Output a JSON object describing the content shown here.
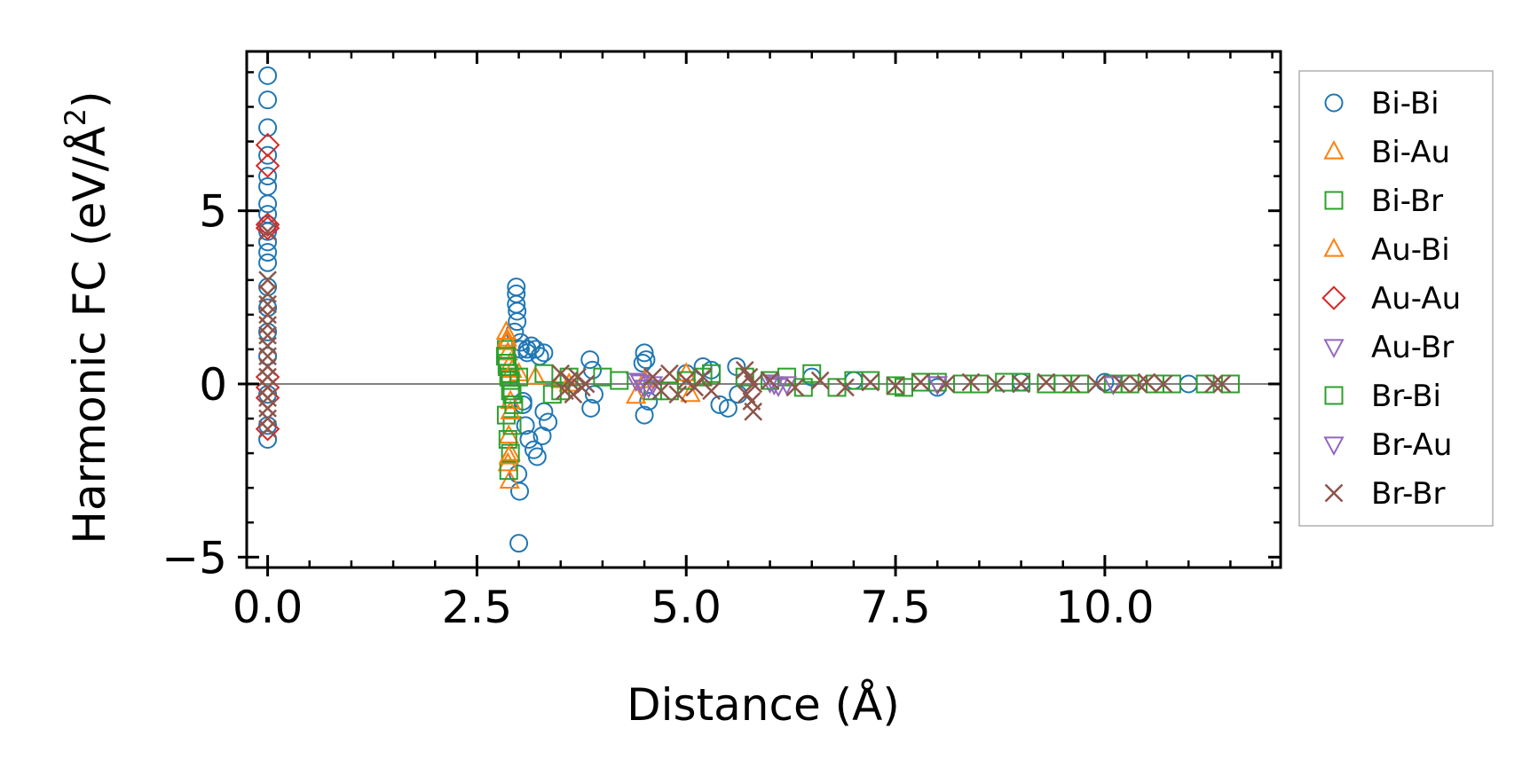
{
  "chart_data": {
    "type": "scatter",
    "title": "",
    "xlabel": "Distance (Å)",
    "ylabel": "Harmonic FC (eV/Å²)",
    "ylabel_main": "Harmonic FC (eV/Å",
    "ylabel_sup": "2",
    "ylabel_close": ")",
    "xlim": [
      -0.25,
      12.1
    ],
    "ylim": [
      -5.3,
      9.6
    ],
    "xticks": [
      0.0,
      2.5,
      5.0,
      7.5,
      10.0
    ],
    "xtick_labels": [
      "0.0",
      "2.5",
      "5.0",
      "7.5",
      "10.0"
    ],
    "yticks": [
      -5,
      0,
      5
    ],
    "ytick_labels": [
      "−5",
      "0",
      "5"
    ],
    "x_minor_step": 0.5,
    "y_minor_step": 1,
    "zero_line": true,
    "grid": false,
    "legend_position": "right-outside",
    "series": [
      {
        "name": "Bi-Bi",
        "marker": "circle",
        "color": "#1f77b4",
        "x": [
          0.0,
          0.0,
          0.0,
          0.0,
          0.0,
          0.0,
          0.0,
          0.0,
          0.0,
          0.0,
          0.0,
          0.0,
          0.0,
          0.0,
          0.0,
          0.0,
          0.0,
          0.0,
          0.0,
          0.0,
          2.97,
          2.97,
          2.97,
          2.98,
          2.98,
          2.95,
          3.02,
          3.02,
          3.1,
          3.1,
          3.15,
          3.2,
          3.25,
          3.3,
          3.05,
          3.08,
          3.12,
          3.18,
          3.22,
          3.28,
          2.99,
          3.01,
          3.0,
          3.05,
          3.3,
          3.35,
          3.85,
          3.88,
          3.9,
          3.86,
          4.5,
          4.52,
          4.48,
          4.55,
          4.5,
          5.0,
          5.2,
          5.3,
          5.4,
          5.5,
          5.6,
          5.62,
          6.5,
          7.0,
          8.0,
          9.0,
          10.0,
          11.0
        ],
        "y": [
          8.9,
          8.2,
          7.4,
          6.6,
          6.0,
          5.7,
          5.2,
          4.9,
          4.6,
          4.4,
          4.1,
          3.8,
          3.5,
          2.8,
          2.2,
          1.5,
          0.8,
          -0.3,
          -1.2,
          -1.6,
          2.8,
          2.6,
          2.3,
          2.1,
          1.8,
          1.5,
          1.2,
          1.0,
          0.9,
          1.0,
          1.1,
          1.0,
          0.8,
          0.9,
          -0.6,
          -1.2,
          -1.6,
          -1.9,
          -2.1,
          -1.5,
          -2.6,
          -3.1,
          -4.6,
          -0.5,
          -0.8,
          -1.1,
          0.7,
          0.4,
          -0.3,
          -0.7,
          0.9,
          0.7,
          0.6,
          -0.5,
          -0.9,
          0.3,
          0.5,
          0.4,
          -0.6,
          -0.7,
          0.5,
          -0.3,
          0.2,
          0.1,
          -0.1,
          0.05,
          0.05,
          0.0
        ]
      },
      {
        "name": "Bi-Au",
        "marker": "triangle-up",
        "color": "#ff7f0e",
        "x": [
          2.85,
          2.86,
          2.87,
          2.9,
          2.9,
          2.88,
          2.87,
          2.89,
          2.9,
          3.0,
          3.2,
          3.5,
          4.4,
          4.5,
          5.0,
          5.05
        ],
        "y": [
          1.5,
          1.2,
          0.9,
          0.6,
          -0.5,
          -1.5,
          -2.3,
          -2.8,
          -2.0,
          0.3,
          0.2,
          0.1,
          -0.35,
          0.1,
          0.3,
          -0.3
        ]
      },
      {
        "name": "Bi-Br",
        "marker": "square",
        "color": "#2ca02c",
        "x": [
          2.85,
          2.86,
          2.88,
          2.9,
          2.85,
          2.87,
          2.9,
          2.88,
          2.92,
          3.3,
          3.5,
          4.0,
          4.6,
          5.0,
          5.3,
          6.2,
          6.5,
          6.8,
          7.2,
          7.6,
          8.0,
          8.5,
          9.0,
          9.5,
          10.1,
          10.8,
          11.5
        ],
        "y": [
          1.0,
          0.6,
          0.2,
          -0.2,
          -0.9,
          -1.6,
          -2.0,
          -2.5,
          -1.2,
          0.3,
          -0.2,
          0.2,
          -0.2,
          0.1,
          0.3,
          0.2,
          0.3,
          -0.1,
          0.1,
          -0.1,
          0.05,
          0.0,
          0.05,
          0.0,
          0.0,
          0.0,
          0.0
        ]
      },
      {
        "name": "Au-Bi",
        "marker": "triangle-up",
        "color": "#ff7f0e",
        "x": [
          2.86,
          2.9,
          2.88,
          2.92,
          3.6
        ],
        "y": [
          1.3,
          -0.8,
          -2.1,
          0.4,
          0.0
        ]
      },
      {
        "name": "Au-Au",
        "marker": "diamond",
        "color": "#d62728",
        "x": [
          0.0,
          0.0,
          0.0,
          0.0,
          0.0,
          0.0,
          0.0,
          0.0
        ],
        "y": [
          6.9,
          6.3,
          4.6,
          4.5,
          0.2,
          -0.1,
          -0.4,
          -1.3
        ]
      },
      {
        "name": "Au-Br",
        "marker": "triangle-down",
        "color": "#9467bd",
        "x": [
          4.4,
          4.5,
          4.6,
          6.0,
          6.1,
          6.2,
          8.0,
          10.1
        ],
        "y": [
          0.1,
          -0.1,
          0.0,
          0.05,
          -0.05,
          0.0,
          0.0,
          0.0
        ]
      },
      {
        "name": "Br-Bi",
        "marker": "square",
        "color": "#2ca02c",
        "x": [
          2.84,
          2.86,
          2.88,
          2.9,
          2.92,
          2.94,
          3.0,
          3.4,
          3.6,
          4.2,
          4.8,
          5.2,
          5.7,
          6.0,
          6.4,
          7.0,
          7.5,
          7.8,
          8.3,
          8.8,
          9.3,
          9.7,
          10.3,
          10.6,
          11.2
        ],
        "y": [
          0.8,
          0.5,
          0.3,
          0.1,
          -0.3,
          -0.6,
          0.2,
          -0.3,
          0.2,
          0.1,
          -0.2,
          0.2,
          0.2,
          0.1,
          -0.1,
          0.1,
          -0.05,
          0.05,
          0.0,
          0.05,
          0.0,
          0.0,
          0.0,
          0.0,
          0.0
        ]
      },
      {
        "name": "Br-Au",
        "marker": "triangle-down",
        "color": "#9467bd",
        "x": [
          4.45,
          4.55,
          6.05,
          8.0
        ],
        "y": [
          0.05,
          -0.1,
          0.0,
          0.0
        ]
      },
      {
        "name": "Br-Br",
        "marker": "x",
        "color": "#8c564b",
        "x": [
          0.0,
          0.0,
          0.0,
          0.0,
          0.0,
          0.0,
          0.0,
          0.0,
          0.0,
          0.0,
          0.0,
          0.0,
          0.0,
          0.0,
          0.0,
          0.0,
          3.5,
          3.55,
          3.6,
          3.65,
          3.7,
          3.75,
          3.8,
          4.6,
          4.7,
          4.8,
          4.9,
          5.0,
          5.1,
          5.2,
          5.3,
          5.7,
          5.72,
          5.75,
          5.78,
          5.8,
          5.8,
          6.0,
          6.3,
          6.6,
          6.9,
          7.2,
          7.5,
          7.8,
          8.1,
          8.4,
          8.7,
          9.0,
          9.3,
          9.6,
          9.9,
          10.2,
          10.4,
          10.5,
          10.7,
          11.3,
          11.4
        ],
        "y": [
          3.0,
          2.6,
          2.3,
          2.0,
          1.7,
          1.4,
          1.1,
          0.8,
          0.5,
          0.2,
          -0.1,
          -0.4,
          -0.7,
          -1.0,
          -1.3,
          4.4,
          0.3,
          -0.2,
          0.1,
          -0.3,
          0.2,
          -0.1,
          0.0,
          0.2,
          -0.2,
          0.3,
          -0.3,
          0.1,
          -0.1,
          0.2,
          -0.2,
          0.4,
          -0.3,
          0.2,
          -0.5,
          -0.8,
          0.0,
          0.1,
          -0.1,
          0.1,
          -0.1,
          0.05,
          -0.05,
          0.05,
          0.0,
          0.05,
          0.0,
          0.0,
          0.05,
          0.0,
          0.0,
          0.0,
          0.0,
          0.05,
          0.0,
          0.0,
          0.0
        ]
      }
    ]
  }
}
